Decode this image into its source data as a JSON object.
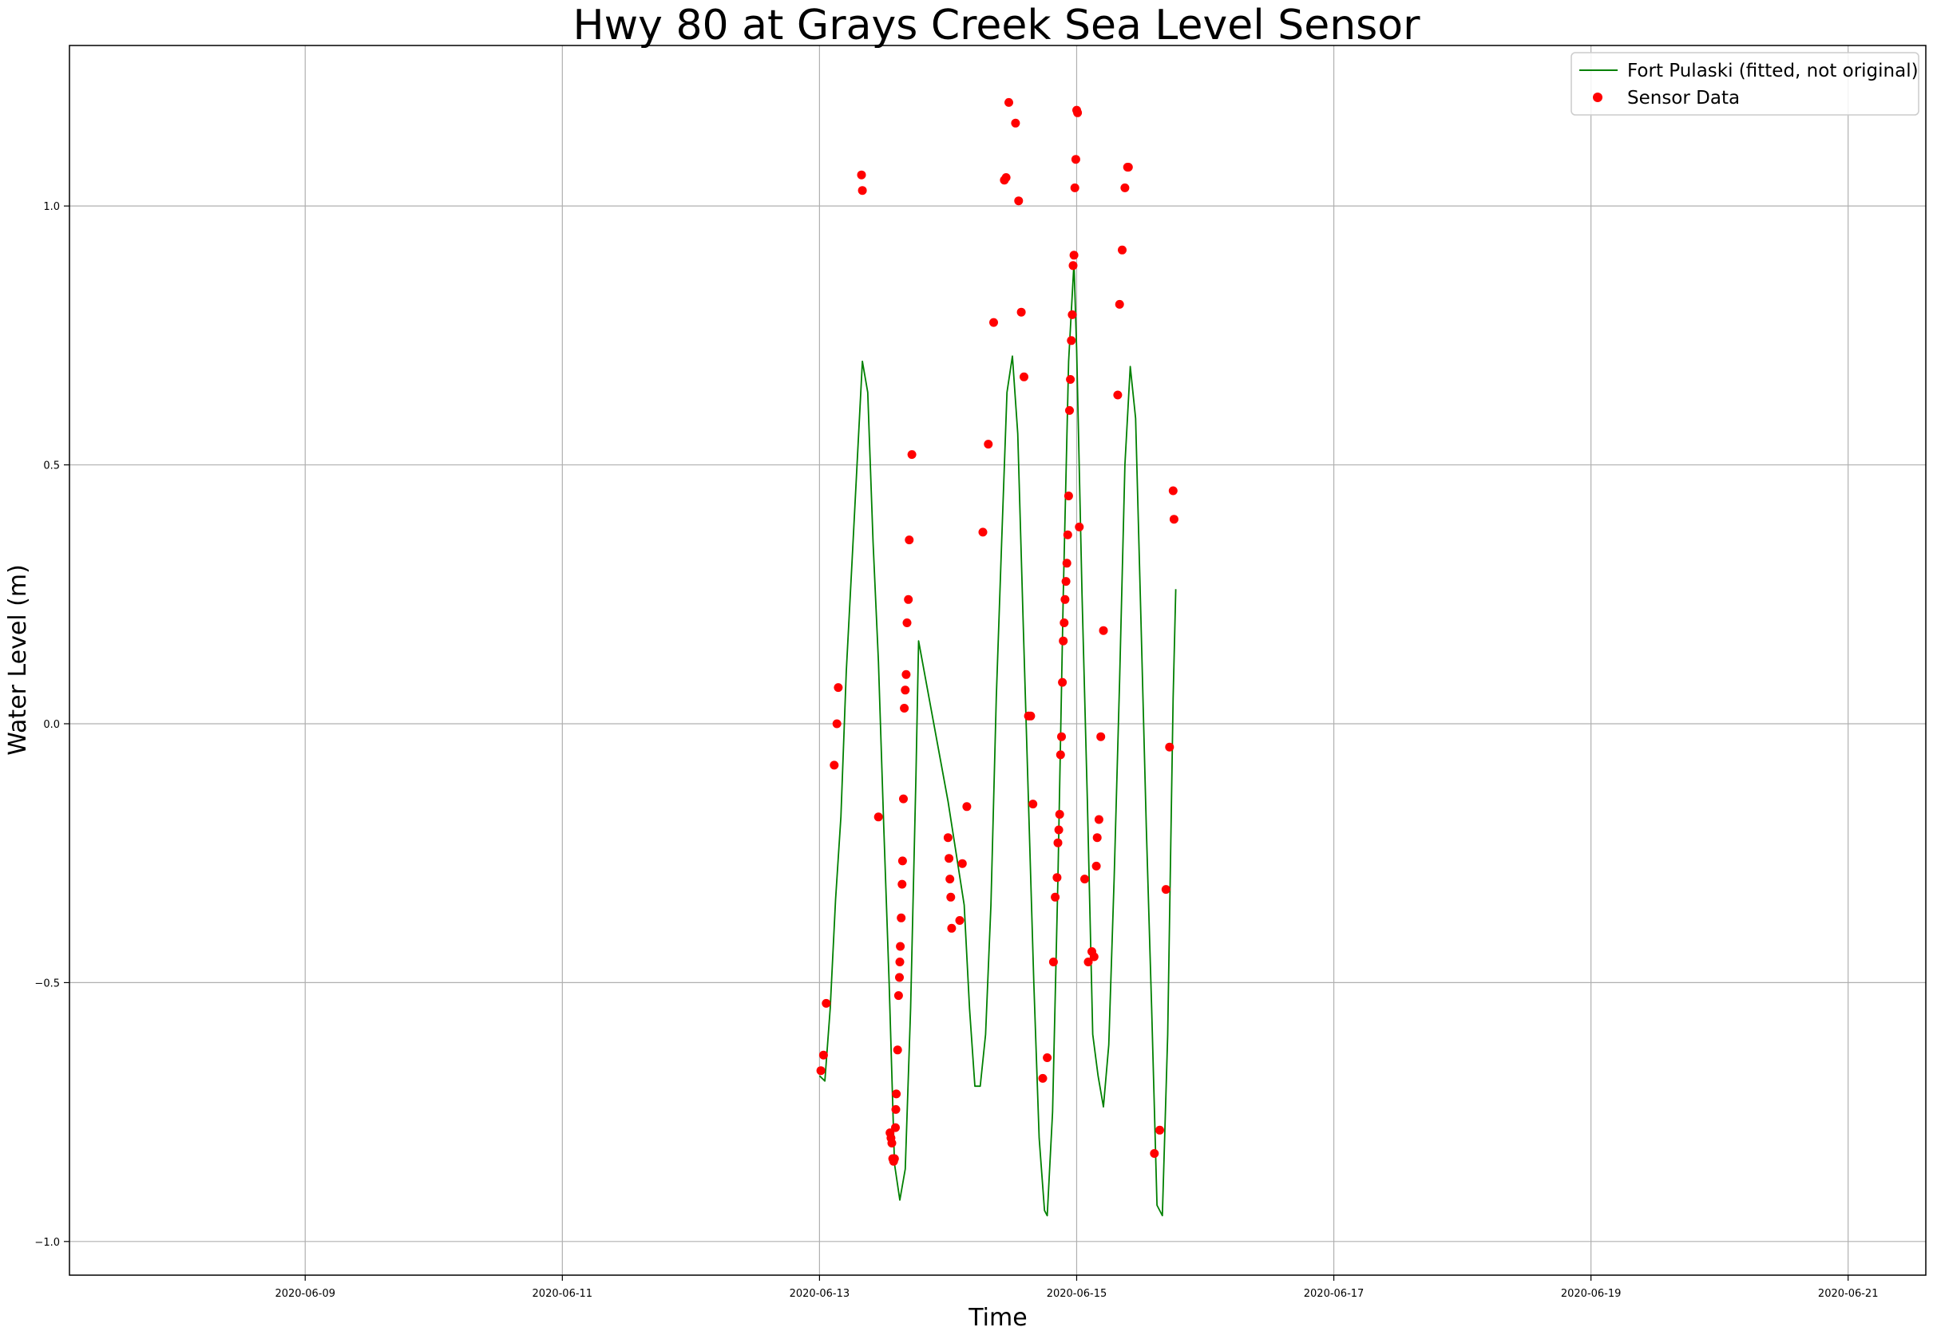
{
  "chart_data": {
    "type": "scatter",
    "title": "Hwy 80 at Grays Creek Sea Level Sensor",
    "xlabel": "Time",
    "ylabel": "Water Level (m)",
    "x_range": [
      "2020-06-07T04:00",
      "2020-06-21T14:30"
    ],
    "ylim": [
      -1.065,
      1.31
    ],
    "grid": true,
    "legend_position": "top-right",
    "x_ticks": [
      "2020-06-09",
      "2020-06-11",
      "2020-06-13",
      "2020-06-15",
      "2020-06-17",
      "2020-06-19",
      "2020-06-21"
    ],
    "y_ticks": [
      -1.0,
      -0.5,
      0.0,
      0.5,
      1.0
    ],
    "y_tick_labels": [
      "−1.0",
      "−0.5",
      "0.0",
      "0.5",
      "1.0"
    ],
    "series": [
      {
        "name": "Fort Pulaski (fitted, not original)",
        "type": "line",
        "color": "#008000",
        "points": [
          [
            "2020-06-13T00:00",
            -0.68
          ],
          [
            "2020-06-13T01:00",
            -0.69
          ],
          [
            "2020-06-13T02:00",
            -0.55
          ],
          [
            "2020-06-13T03:00",
            -0.34
          ],
          [
            "2020-06-13T04:00",
            -0.18
          ],
          [
            "2020-06-13T05:00",
            0.1
          ],
          [
            "2020-06-13T06:00",
            0.3
          ],
          [
            "2020-06-13T07:00",
            0.5
          ],
          [
            "2020-06-13T08:00",
            0.7
          ],
          [
            "2020-06-13T09:00",
            0.64
          ],
          [
            "2020-06-13T10:00",
            0.35
          ],
          [
            "2020-06-13T11:00",
            0.12
          ],
          [
            "2020-06-13T12:00",
            -0.2
          ],
          [
            "2020-06-13T13:00",
            -0.5
          ],
          [
            "2020-06-13T14:00",
            -0.85
          ],
          [
            "2020-06-13T15:00",
            -0.92
          ],
          [
            "2020-06-13T16:00",
            -0.86
          ],
          [
            "2020-06-13T17:00",
            -0.55
          ],
          [
            "2020-06-13T18:00",
            -0.1
          ],
          [
            "2020-06-13T18:30",
            0.16
          ],
          [
            "2020-06-14T00:00",
            -0.15
          ],
          [
            "2020-06-14T03:00",
            -0.35
          ],
          [
            "2020-06-14T04:00",
            -0.55
          ],
          [
            "2020-06-14T05:00",
            -0.7
          ],
          [
            "2020-06-14T06:00",
            -0.7
          ],
          [
            "2020-06-14T07:00",
            -0.6
          ],
          [
            "2020-06-14T08:00",
            -0.35
          ],
          [
            "2020-06-14T09:00",
            0.05
          ],
          [
            "2020-06-14T10:00",
            0.35
          ],
          [
            "2020-06-14T11:00",
            0.64
          ],
          [
            "2020-06-14T12:00",
            0.71
          ],
          [
            "2020-06-14T13:00",
            0.56
          ],
          [
            "2020-06-14T14:00",
            0.2
          ],
          [
            "2020-06-14T15:00",
            -0.15
          ],
          [
            "2020-06-14T16:00",
            -0.5
          ],
          [
            "2020-06-14T17:00",
            -0.8
          ],
          [
            "2020-06-14T18:00",
            -0.94
          ],
          [
            "2020-06-14T18:30",
            -0.95
          ],
          [
            "2020-06-14T19:30",
            -0.75
          ],
          [
            "2020-06-14T20:30",
            -0.3
          ],
          [
            "2020-06-14T21:30",
            0.25
          ],
          [
            "2020-06-14T22:30",
            0.7
          ],
          [
            "2020-06-14T23:30",
            0.89
          ],
          [
            "2020-06-15T00:00",
            0.72
          ],
          [
            "2020-06-15T01:00",
            0.25
          ],
          [
            "2020-06-15T02:00",
            -0.15
          ],
          [
            "2020-06-15T03:00",
            -0.6
          ],
          [
            "2020-06-15T04:00",
            -0.68
          ],
          [
            "2020-06-15T05:00",
            -0.74
          ],
          [
            "2020-06-15T06:00",
            -0.62
          ],
          [
            "2020-06-15T07:00",
            -0.3
          ],
          [
            "2020-06-15T08:00",
            0.08
          ],
          [
            "2020-06-15T09:00",
            0.5
          ],
          [
            "2020-06-15T10:00",
            0.69
          ],
          [
            "2020-06-15T11:00",
            0.59
          ],
          [
            "2020-06-15T12:00",
            0.2
          ],
          [
            "2020-06-15T13:00",
            -0.2
          ],
          [
            "2020-06-15T14:00",
            -0.55
          ],
          [
            "2020-06-15T15:00",
            -0.93
          ],
          [
            "2020-06-15T16:00",
            -0.95
          ],
          [
            "2020-06-15T17:00",
            -0.6
          ],
          [
            "2020-06-15T18:00",
            0.05
          ],
          [
            "2020-06-15T18:30",
            0.26
          ]
        ]
      },
      {
        "name": "Sensor Data",
        "type": "scatter",
        "color": "#ff0000",
        "points": [
          [
            "2020-06-13T00:15",
            -0.67
          ],
          [
            "2020-06-13T00:45",
            -0.64
          ],
          [
            "2020-06-13T01:15",
            -0.54
          ],
          [
            "2020-06-13T02:45",
            -0.08
          ],
          [
            "2020-06-13T03:15",
            0.0
          ],
          [
            "2020-06-13T03:30",
            0.07
          ],
          [
            "2020-06-13T07:50",
            1.06
          ],
          [
            "2020-06-13T08:00",
            1.03
          ],
          [
            "2020-06-13T11:00",
            -0.18
          ],
          [
            "2020-06-13T13:10",
            -0.79
          ],
          [
            "2020-06-13T13:20",
            -0.8
          ],
          [
            "2020-06-13T13:30",
            -0.81
          ],
          [
            "2020-06-13T13:40",
            -0.84
          ],
          [
            "2020-06-13T13:50",
            -0.845
          ],
          [
            "2020-06-13T14:00",
            -0.84
          ],
          [
            "2020-06-13T14:10",
            -0.78
          ],
          [
            "2020-06-13T14:15",
            -0.745
          ],
          [
            "2020-06-13T14:20",
            -0.715
          ],
          [
            "2020-06-13T14:35",
            -0.63
          ],
          [
            "2020-06-13T14:45",
            -0.525
          ],
          [
            "2020-06-13T14:55",
            -0.49
          ],
          [
            "2020-06-13T15:00",
            -0.46
          ],
          [
            "2020-06-13T15:05",
            -0.43
          ],
          [
            "2020-06-13T15:15",
            -0.375
          ],
          [
            "2020-06-13T15:25",
            -0.31
          ],
          [
            "2020-06-13T15:30",
            -0.265
          ],
          [
            "2020-06-13T15:40",
            -0.145
          ],
          [
            "2020-06-13T15:50",
            0.03
          ],
          [
            "2020-06-13T16:00",
            0.065
          ],
          [
            "2020-06-13T16:10",
            0.095
          ],
          [
            "2020-06-13T16:20",
            0.195
          ],
          [
            "2020-06-13T16:35",
            0.24
          ],
          [
            "2020-06-13T16:45",
            0.355
          ],
          [
            "2020-06-13T17:15",
            0.52
          ],
          [
            "2020-06-14T00:00",
            -0.22
          ],
          [
            "2020-06-14T00:10",
            -0.26
          ],
          [
            "2020-06-14T00:20",
            -0.3
          ],
          [
            "2020-06-14T00:30",
            -0.335
          ],
          [
            "2020-06-14T00:40",
            -0.395
          ],
          [
            "2020-06-14T02:10",
            -0.38
          ],
          [
            "2020-06-14T02:40",
            -0.27
          ],
          [
            "2020-06-14T03:30",
            -0.16
          ],
          [
            "2020-06-14T06:30",
            0.37
          ],
          [
            "2020-06-14T07:30",
            0.54
          ],
          [
            "2020-06-14T08:30",
            0.775
          ],
          [
            "2020-06-14T10:30",
            1.05
          ],
          [
            "2020-06-14T10:50",
            1.055
          ],
          [
            "2020-06-14T11:20",
            1.2
          ],
          [
            "2020-06-14T12:35",
            1.16
          ],
          [
            "2020-06-14T13:10",
            1.01
          ],
          [
            "2020-06-14T13:40",
            0.795
          ],
          [
            "2020-06-14T14:10",
            0.67
          ],
          [
            "2020-06-14T15:00",
            0.015
          ],
          [
            "2020-06-14T15:25",
            0.015
          ],
          [
            "2020-06-14T15:50",
            -0.155
          ],
          [
            "2020-06-14T17:40",
            -0.685
          ],
          [
            "2020-06-14T18:30",
            -0.645
          ],
          [
            "2020-06-14T19:40",
            -0.46
          ],
          [
            "2020-06-14T20:00",
            -0.335
          ],
          [
            "2020-06-14T20:20",
            -0.297
          ],
          [
            "2020-06-14T20:30",
            -0.23
          ],
          [
            "2020-06-14T20:40",
            -0.205
          ],
          [
            "2020-06-14T20:50",
            -0.175
          ],
          [
            "2020-06-14T21:00",
            -0.06
          ],
          [
            "2020-06-14T21:10",
            -0.025
          ],
          [
            "2020-06-14T21:20",
            0.08
          ],
          [
            "2020-06-14T21:30",
            0.16
          ],
          [
            "2020-06-14T21:40",
            0.195
          ],
          [
            "2020-06-14T21:50",
            0.24
          ],
          [
            "2020-06-14T22:00",
            0.275
          ],
          [
            "2020-06-14T22:10",
            0.31
          ],
          [
            "2020-06-14T22:20",
            0.365
          ],
          [
            "2020-06-14T22:30",
            0.44
          ],
          [
            "2020-06-14T22:40",
            0.605
          ],
          [
            "2020-06-14T22:50",
            0.665
          ],
          [
            "2020-06-14T23:00",
            0.74
          ],
          [
            "2020-06-14T23:10",
            0.79
          ],
          [
            "2020-06-14T23:20",
            0.885
          ],
          [
            "2020-06-14T23:30",
            0.905
          ],
          [
            "2020-06-14T23:40",
            1.035
          ],
          [
            "2020-06-14T23:50",
            1.09
          ],
          [
            "2020-06-15T00:10",
            1.18
          ],
          [
            "2020-06-15T00:00",
            1.185
          ],
          [
            "2020-06-15T00:30",
            0.38
          ],
          [
            "2020-06-15T01:30",
            -0.3
          ],
          [
            "2020-06-15T02:10",
            -0.46
          ],
          [
            "2020-06-15T02:50",
            -0.44
          ],
          [
            "2020-06-15T03:15",
            -0.45
          ],
          [
            "2020-06-15T03:40",
            -0.275
          ],
          [
            "2020-06-15T03:50",
            -0.22
          ],
          [
            "2020-06-15T04:10",
            -0.185
          ],
          [
            "2020-06-15T04:30",
            -0.025
          ],
          [
            "2020-06-15T05:00",
            0.18
          ],
          [
            "2020-06-15T07:40",
            0.635
          ],
          [
            "2020-06-15T08:00",
            0.81
          ],
          [
            "2020-06-15T08:30",
            0.915
          ],
          [
            "2020-06-15T09:00",
            1.035
          ],
          [
            "2020-06-15T09:30",
            1.075
          ],
          [
            "2020-06-15T09:40",
            1.075
          ],
          [
            "2020-06-15T14:30",
            -0.83
          ],
          [
            "2020-06-15T15:30",
            -0.785
          ],
          [
            "2020-06-15T16:40",
            -0.32
          ],
          [
            "2020-06-15T17:20",
            -0.045
          ],
          [
            "2020-06-15T18:00",
            0.45
          ],
          [
            "2020-06-15T18:10",
            0.395
          ]
        ]
      }
    ]
  }
}
